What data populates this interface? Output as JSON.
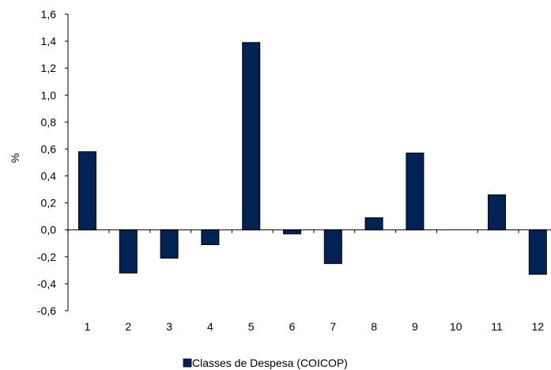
{
  "chart_data": {
    "type": "bar",
    "title": "",
    "xlabel": "",
    "ylabel": "%",
    "categories": [
      "1",
      "2",
      "3",
      "4",
      "5",
      "6",
      "7",
      "8",
      "9",
      "10",
      "11",
      "12"
    ],
    "series": [
      {
        "name": "Classes de Despesa (COICOP)",
        "values": [
          0.58,
          -0.32,
          -0.21,
          -0.11,
          1.39,
          -0.03,
          -0.25,
          0.09,
          0.57,
          0.0,
          0.26,
          -0.33
        ],
        "color": "#002255"
      }
    ],
    "ylim": [
      -0.6,
      1.6
    ],
    "yticks": [
      "-0,6",
      "-0,4",
      "-0,2",
      "0,0",
      "0,2",
      "0,4",
      "0,6",
      "0,8",
      "1,0",
      "1,2",
      "1,4",
      "1,6"
    ],
    "grid": false,
    "legend": "bottom-center"
  }
}
